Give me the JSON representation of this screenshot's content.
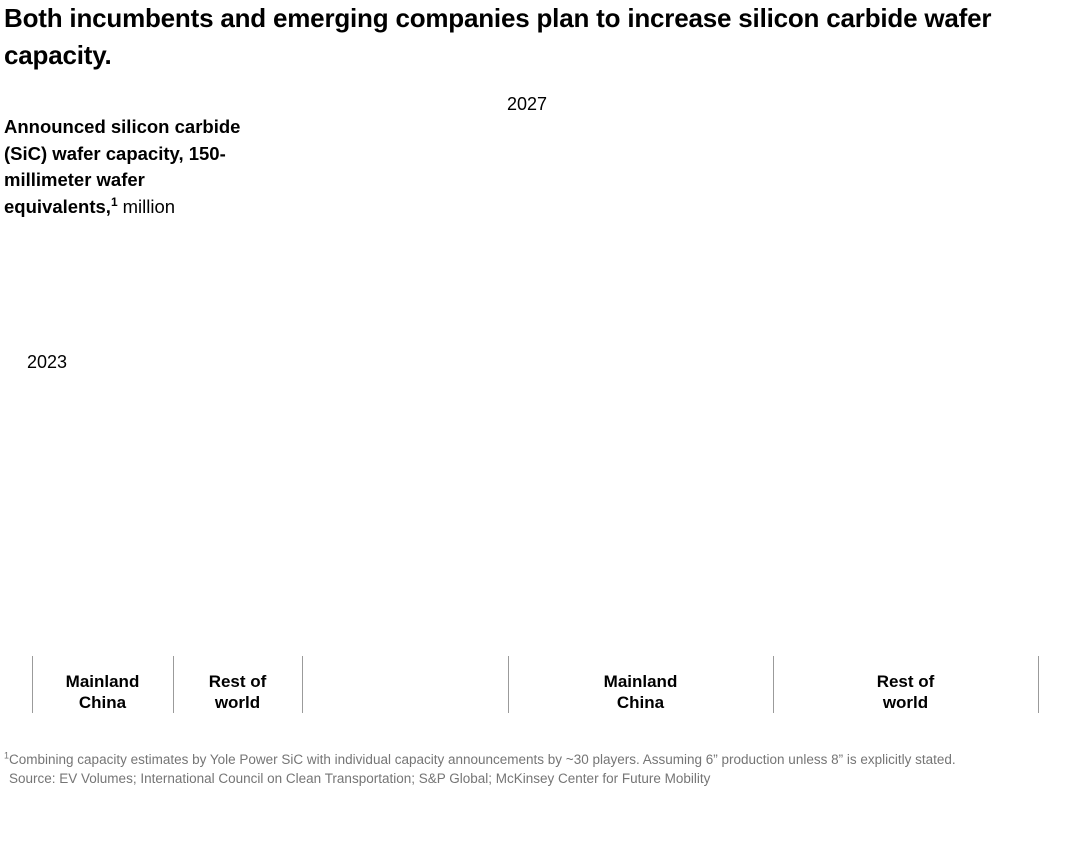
{
  "header": {
    "title": "Both incumbents and emerging companies plan to increase silicon carbide wafer capacity."
  },
  "subtitle": {
    "bold": "Announced silicon carbide (SiC) wafer capacity, 150-millimeter wafer equivalents,",
    "footnote_marker": "1",
    "unit": "million"
  },
  "chart": {
    "year_labels": [
      {
        "text": "2023"
      },
      {
        "text": "2027"
      }
    ],
    "axis": {
      "labels": [
        {
          "text": "Mainland China"
        },
        {
          "text": "Rest of world"
        },
        {
          "text": "Mainland China"
        },
        {
          "text": "Rest of world"
        }
      ]
    }
  },
  "chart_data": {
    "type": "bar",
    "title": "Announced silicon carbide (SiC) wafer capacity, 150-millimeter wafer equivalents, million",
    "groups": [
      {
        "label": "2023",
        "categories": [
          "Mainland China",
          "Rest of world"
        ],
        "values": null
      },
      {
        "label": "2027",
        "categories": [
          "Mainland China",
          "Rest of world"
        ],
        "values": null
      }
    ],
    "note": "Bar marks and numeric values are not rendered in the screenshot; the plot area is blank. Only the year group labels, category axis tick marks, and category labels are visible.",
    "legend_position": "none",
    "grid": false
  },
  "footer": {
    "footnote_marker": "1",
    "footnote": "Combining capacity estimates by Yole Power SiC with individual capacity announcements by ~30 players. Assuming 6” production unless 8” is explicitly stated.",
    "source": "Source: EV Volumes; International Council on Clean Transportation; S&P Global; McKinsey Center for Future Mobility"
  },
  "colors": {
    "background": "#ffffff",
    "text": "#000000",
    "axis_tick": "#9b9b9b",
    "footnote_text": "#757575"
  }
}
